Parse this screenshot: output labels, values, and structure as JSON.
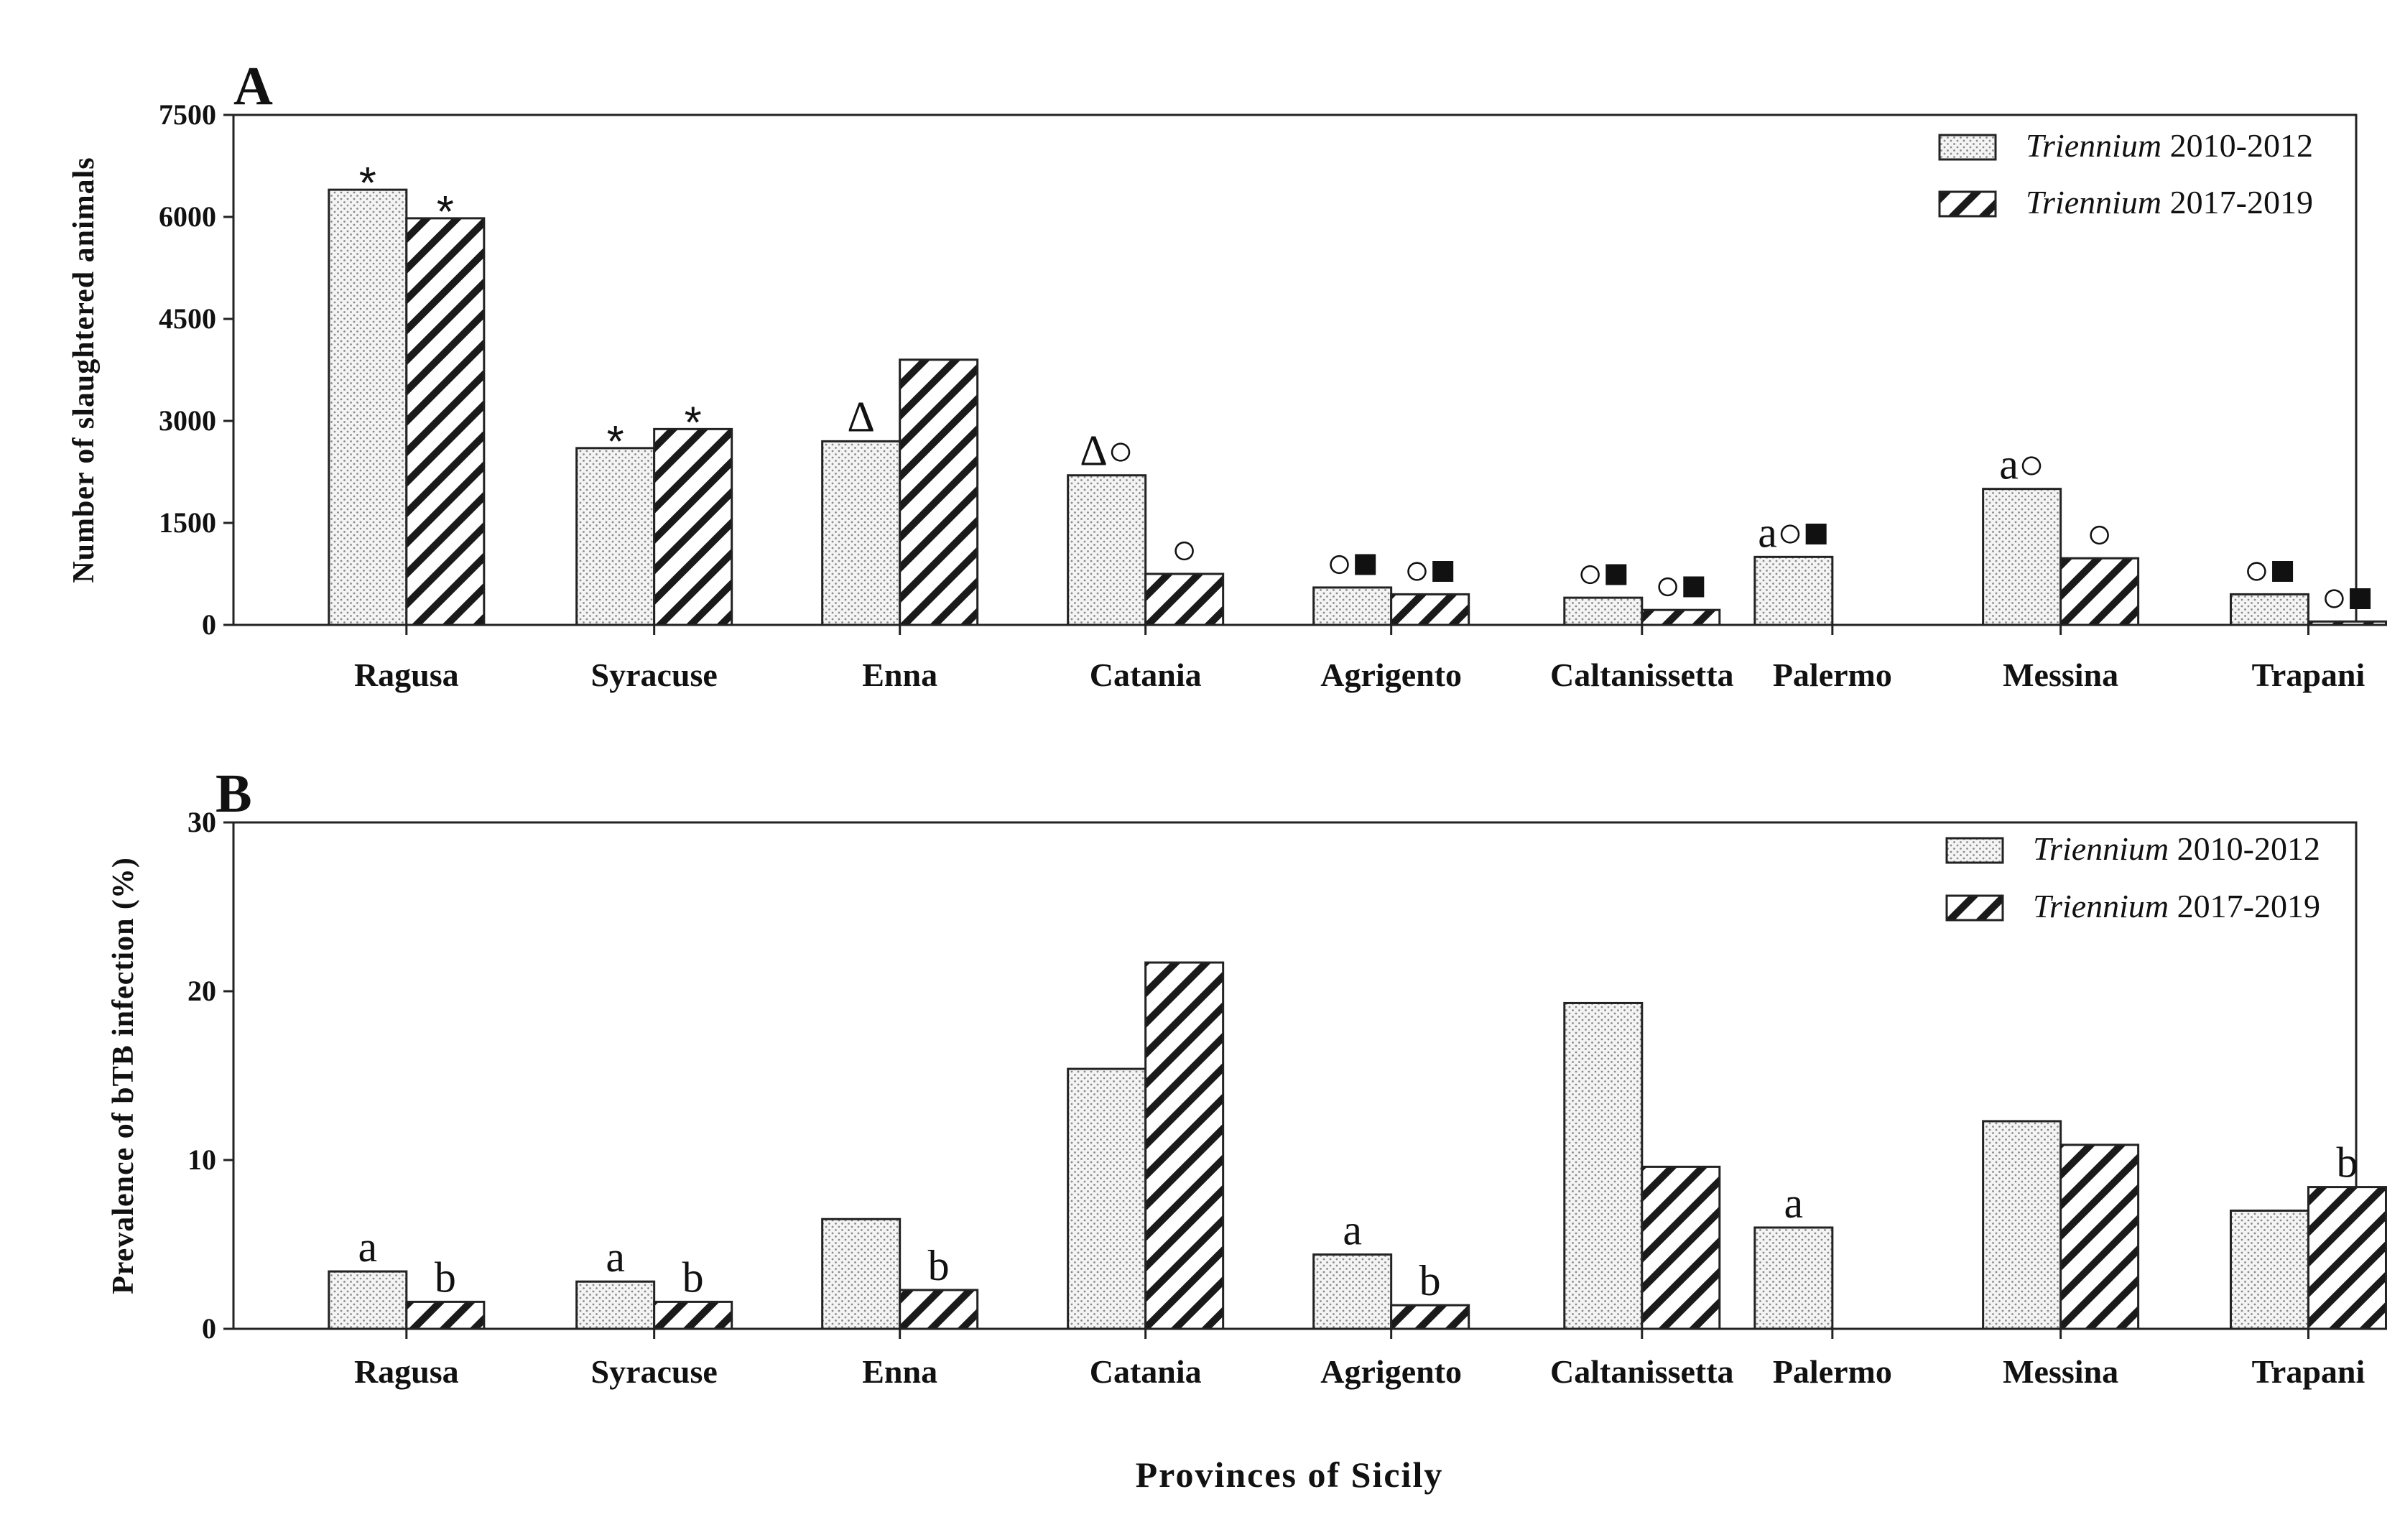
{
  "chart_data": [
    {
      "panel": "A",
      "type": "bar",
      "ylabel": "Number of slaughtered animals",
      "xlabel": "",
      "ylim": [
        0,
        7500
      ],
      "yticks": [
        "0",
        "1500",
        "3000",
        "4500",
        "6000",
        "7500"
      ],
      "ytick_values": [
        0,
        1500,
        3000,
        4500,
        6000,
        7500
      ],
      "categories": [
        "Ragusa",
        "Syracuse",
        "Enna",
        "Catania",
        "Agrigento",
        "Caltanissetta",
        "Palermo",
        "Messina",
        "Trapani"
      ],
      "legend": [
        {
          "italic": "Triennium",
          "plain": " 2010-2012"
        },
        {
          "italic": "Triennium",
          "plain": " 2017-2019"
        }
      ],
      "series": [
        {
          "name": "Triennium 2010-2012",
          "pattern": "dots",
          "values": [
            6400,
            2600,
            2700,
            2200,
            550,
            400,
            1000,
            2000,
            450
          ]
        },
        {
          "name": "Triennium 2017-2019",
          "pattern": "hatch",
          "values": [
            5980,
            2880,
            3900,
            750,
            450,
            220,
            0,
            980,
            50
          ]
        }
      ],
      "annotations": [
        {
          "category": 0,
          "series": 0,
          "text": "*"
        },
        {
          "category": 0,
          "series": 1,
          "text": "*"
        },
        {
          "category": 1,
          "series": 0,
          "text": "*"
        },
        {
          "category": 1,
          "series": 1,
          "text": "*"
        },
        {
          "category": 2,
          "series": 0,
          "text": "Δ"
        },
        {
          "category": 3,
          "series": 0,
          "text": "Δ○"
        },
        {
          "category": 3,
          "series": 1,
          "text": "○"
        },
        {
          "category": 4,
          "series": 0,
          "text": "○■"
        },
        {
          "category": 4,
          "series": 1,
          "text": "○■"
        },
        {
          "category": 5,
          "series": 0,
          "text": "○■"
        },
        {
          "category": 5,
          "series": 1,
          "text": "○■"
        },
        {
          "category": 6,
          "series": 0,
          "text": "a○■"
        },
        {
          "category": 7,
          "series": 0,
          "text": "a○"
        },
        {
          "category": 7,
          "series": 1,
          "text": "○"
        },
        {
          "category": 8,
          "series": 0,
          "text": "○■"
        },
        {
          "category": 8,
          "series": 1,
          "text": "○■"
        }
      ]
    },
    {
      "panel": "B",
      "type": "bar",
      "ylabel": "Prevalence of bTB infection (%)",
      "xlabel": "Provinces of Sicily",
      "ylim": [
        0,
        30
      ],
      "yticks": [
        "0",
        "10",
        "20",
        "30"
      ],
      "ytick_values": [
        0,
        10,
        20,
        30
      ],
      "categories": [
        "Ragusa",
        "Syracuse",
        "Enna",
        "Catania",
        "Agrigento",
        "Caltanissetta",
        "Palermo",
        "Messina",
        "Trapani"
      ],
      "legend": [
        {
          "italic": "Triennium",
          "plain": " 2010-2012"
        },
        {
          "italic": "Triennium",
          "plain": " 2017-2019"
        }
      ],
      "series": [
        {
          "name": "Triennium 2010-2012",
          "pattern": "dots",
          "values": [
            3.4,
            2.8,
            6.5,
            15.4,
            4.4,
            19.3,
            6.0,
            12.3,
            7.0
          ]
        },
        {
          "name": "Triennium 2017-2019",
          "pattern": "hatch",
          "values": [
            1.6,
            1.6,
            2.3,
            21.7,
            1.4,
            9.6,
            0,
            10.9,
            8.4
          ]
        }
      ],
      "annotations": [
        {
          "category": 0,
          "series": 0,
          "text": "a"
        },
        {
          "category": 0,
          "series": 1,
          "text": "b"
        },
        {
          "category": 1,
          "series": 0,
          "text": "a"
        },
        {
          "category": 1,
          "series": 1,
          "text": "b"
        },
        {
          "category": 2,
          "series": 1,
          "text": "b"
        },
        {
          "category": 4,
          "series": 0,
          "text": "a"
        },
        {
          "category": 4,
          "series": 1,
          "text": "b"
        },
        {
          "category": 6,
          "series": 0,
          "text": "a"
        },
        {
          "category": 8,
          "series": 1,
          "text": "b"
        }
      ]
    }
  ]
}
